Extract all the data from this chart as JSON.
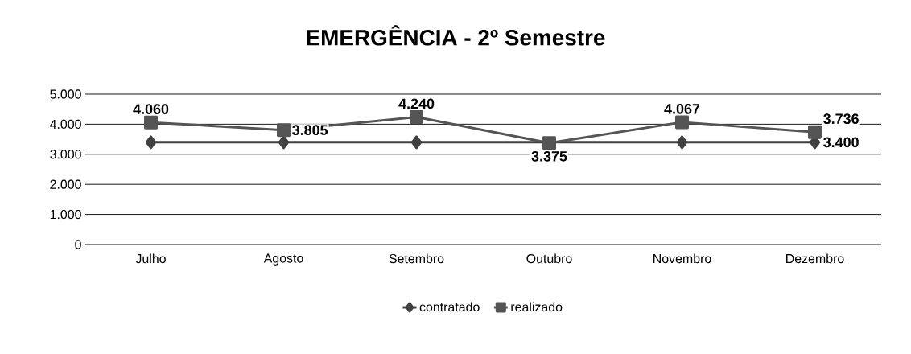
{
  "chart_data": {
    "type": "line",
    "title": "EMERGÊNCIA - 2º Semestre",
    "categories": [
      "Julho",
      "Agosto",
      "Setembro",
      "Outubro",
      "Novembro",
      "Dezembro"
    ],
    "series": [
      {
        "name": "contratado",
        "color": "#404040",
        "marker": "diamond",
        "values": [
          3400,
          3400,
          3400,
          null,
          3400,
          3400
        ],
        "value_labels": [
          null,
          null,
          null,
          null,
          null,
          "3.400"
        ]
      },
      {
        "name": "realizado",
        "color": "#555555",
        "marker": "square",
        "values": [
          4060,
          3805,
          4240,
          3375,
          4067,
          3736
        ],
        "value_labels": [
          "4.060",
          "3.805",
          "4.240",
          "3.375",
          "4.067",
          "3.736"
        ]
      }
    ],
    "ylim": [
      0,
      5000
    ],
    "yticks": [
      {
        "value": 0,
        "label": "0"
      },
      {
        "value": 1000,
        "label": "1.000"
      },
      {
        "value": 2000,
        "label": "2.000"
      },
      {
        "value": 3000,
        "label": "3.000"
      },
      {
        "value": 4000,
        "label": "4.000"
      },
      {
        "value": 5000,
        "label": "5.000"
      }
    ],
    "grid": "y",
    "legend": "bottom",
    "line_style": "solid"
  }
}
